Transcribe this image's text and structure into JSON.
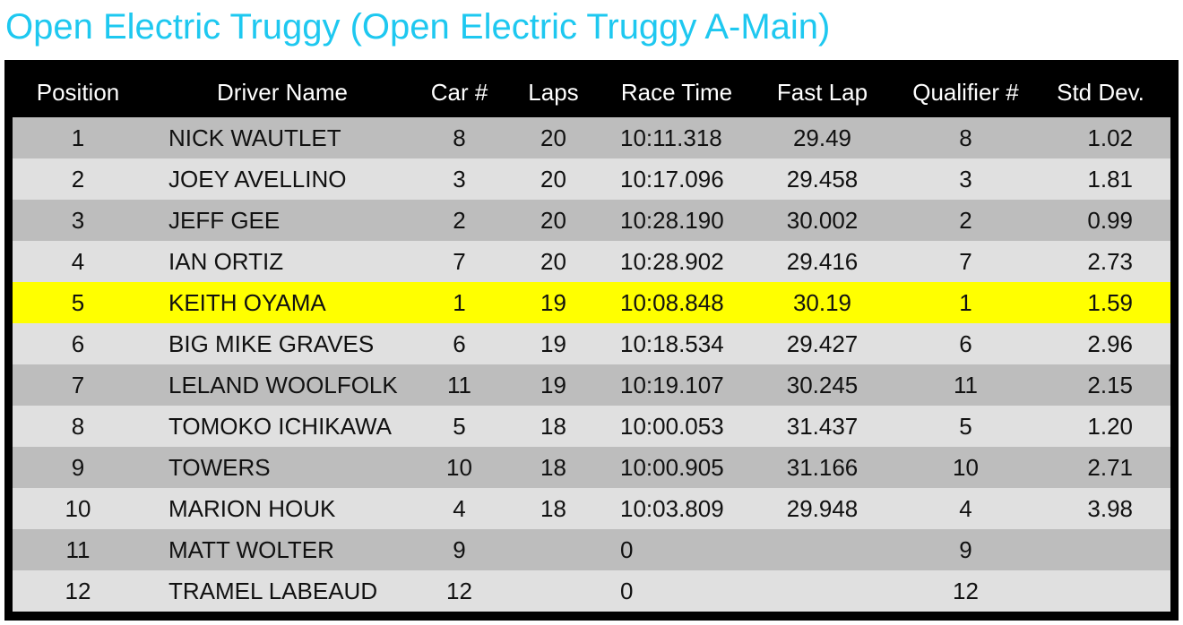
{
  "header": {
    "title": "Open Electric Truggy (Open Electric Truggy A-Main)"
  },
  "table": {
    "columns": [
      "Position",
      "Driver Name",
      "Car #",
      "Laps",
      "Race Time",
      "Fast Lap",
      "Qualifier #",
      "Std Dev."
    ],
    "rows": [
      [
        "1",
        "NICK WAUTLET",
        "8",
        "20",
        "10:11.318",
        "29.49",
        "8",
        "1.02"
      ],
      [
        "2",
        "JOEY AVELLINO",
        "3",
        "20",
        "10:17.096",
        "29.458",
        "3",
        "1.81"
      ],
      [
        "3",
        "JEFF GEE",
        "2",
        "20",
        "10:28.190",
        "30.002",
        "2",
        "0.99"
      ],
      [
        "4",
        "IAN ORTIZ",
        "7",
        "20",
        "10:28.902",
        "29.416",
        "7",
        "2.73"
      ],
      [
        "5",
        "KEITH OYAMA",
        "1",
        "19",
        "10:08.848",
        "30.19",
        "1",
        "1.59"
      ],
      [
        "6",
        "BIG MIKE GRAVES",
        "6",
        "19",
        "10:18.534",
        "29.427",
        "6",
        "2.96"
      ],
      [
        "7",
        "LELAND WOOLFOLK",
        "11",
        "19",
        "10:19.107",
        "30.245",
        "11",
        "2.15"
      ],
      [
        "8",
        "TOMOKO ICHIKAWA",
        "5",
        "18",
        "10:00.053",
        "31.437",
        "5",
        "1.20"
      ],
      [
        "9",
        "TOWERS",
        "10",
        "18",
        "10:00.905",
        "31.166",
        "10",
        "2.71"
      ],
      [
        "10",
        "MARION HOUK",
        "4",
        "18",
        "10:03.809",
        "29.948",
        "4",
        "3.98"
      ],
      [
        "11",
        "MATT WOLTER",
        "9",
        null,
        "0",
        null,
        "9",
        null
      ],
      [
        "12",
        "TRAMEL LABEAUD",
        "12",
        null,
        "0",
        null,
        "12",
        null
      ]
    ],
    "highlight": {
      "row": 4,
      "color": "#ffff00"
    }
  }
}
